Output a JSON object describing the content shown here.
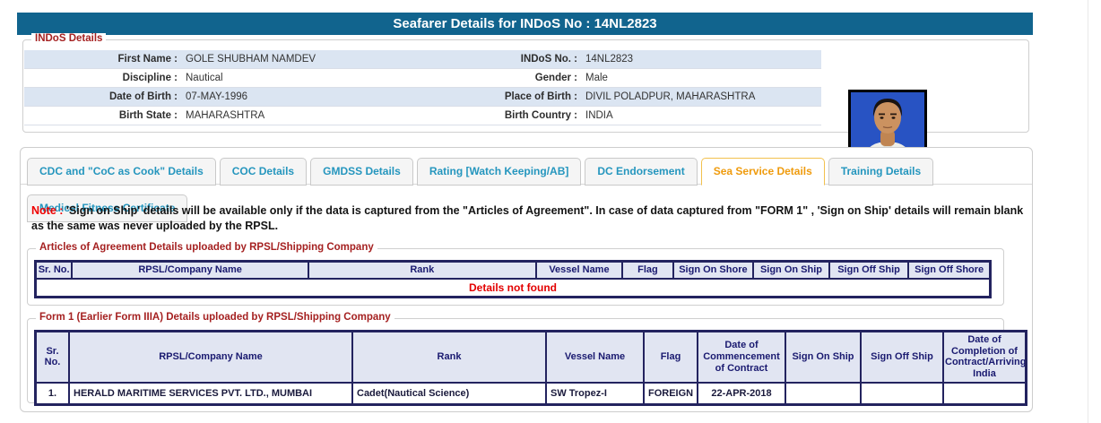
{
  "header": {
    "title": "Seafarer Details for INDoS No : 14NL2823"
  },
  "indos_details": {
    "legend": "INDoS Details",
    "rows": [
      {
        "label1": "First Name :",
        "value1": "GOLE SHUBHAM NAMDEV",
        "label2": "INDoS No. :",
        "value2": "14NL2823"
      },
      {
        "label1": "Discipline :",
        "value1": "Nautical",
        "label2": "Gender :",
        "value2": "Male"
      },
      {
        "label1": "Date of Birth :",
        "value1": "07-MAY-1996",
        "label2": "Place of Birth :",
        "value2": "DIVIL POLADPUR, MAHARASHTRA"
      },
      {
        "label1": "Birth State :",
        "value1": "MAHARASHTRA",
        "label2": "Birth Country :",
        "value2": "INDIA"
      }
    ],
    "photo_icon": "seafarer-photo"
  },
  "tabs": [
    {
      "label": "CDC and \"CoC as Cook\" Details",
      "active": false
    },
    {
      "label": "COC Details",
      "active": false
    },
    {
      "label": "GMDSS Details",
      "active": false
    },
    {
      "label": "Rating [Watch Keeping/AB]",
      "active": false
    },
    {
      "label": "DC Endorsement",
      "active": false
    },
    {
      "label": "Sea Service Details",
      "active": true
    },
    {
      "label": "Training Details",
      "active": false
    },
    {
      "label": "Medical Fitness Certificate",
      "active": false
    }
  ],
  "note": {
    "prefix": "Note :",
    "text": "'Sign on Ship' details will be available only if the data is captured from the \"Articles of Agreement\". In case of data captured from \"FORM 1\" , 'Sign on Ship' details will remain blank as the same was never uploaded by the RPSL."
  },
  "articles_table": {
    "legend": "Articles of Agreement Details uploaded by RPSL/Shipping Company",
    "headers": [
      "Sr. No.",
      "RPSL/Company Name",
      "Rank",
      "Vessel Name",
      "Flag",
      "Sign On Shore",
      "Sign On Ship",
      "Sign Off Ship",
      "Sign Off Shore"
    ],
    "empty_message": "Details not found"
  },
  "form1_table": {
    "legend": "Form 1 (Earlier Form IIIA) Details uploaded by RPSL/Shipping Company",
    "headers": [
      "Sr. No.",
      "RPSL/Company Name",
      "Rank",
      "Vessel Name",
      "Flag",
      "Date of Commencement of Contract",
      "Sign On Ship",
      "Sign Off Ship",
      "Date of Completion of Contract/Arriving India"
    ],
    "rows": [
      [
        "1.",
        "HERALD MARITIME SERVICES PVT. LTD., MUMBAI",
        "Cadet(Nautical Science)",
        "SW Tropez-I",
        "FOREIGN",
        "22-APR-2018",
        "",
        "",
        ""
      ]
    ]
  },
  "colors": {
    "title_bar": "#11648e",
    "legend_red": "#a52121",
    "note_red": "#ee0000",
    "empty_red": "#e30000",
    "tab_blue": "#2596be",
    "tab_active_orange": "#ef9b0d",
    "tab_active_border": "#f2c14e",
    "table_border_navy": "#23235f",
    "table_header_bg": "#e1e5f2",
    "table_header_text": "#1a1a70",
    "row_stripe_blue": "#dbe5f2",
    "photo_background_blue": "#2853c3"
  }
}
